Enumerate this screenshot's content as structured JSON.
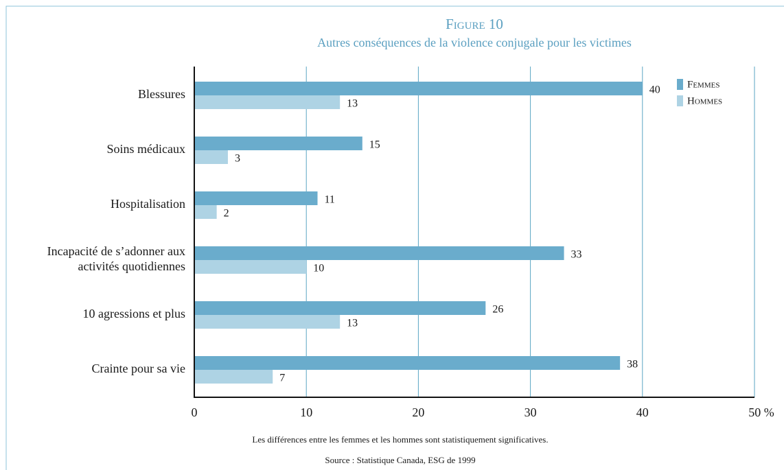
{
  "chart_data": {
    "type": "bar",
    "orientation": "horizontal",
    "title": "Figure 10",
    "subtitle": "Autres conséquences de la violence conjugale pour les victimes",
    "categories": [
      "Blessures",
      "Soins médicaux",
      "Hospitalisation",
      "Incapacité de s’adonner aux\nactivités quotidiennes",
      "10 agressions et plus",
      "Crainte pour sa vie"
    ],
    "series": [
      {
        "name": "Femmes",
        "color": "#6aaccc",
        "values": [
          40,
          15,
          11,
          33,
          26,
          38
        ]
      },
      {
        "name": "Hommes",
        "color": "#aed3e4",
        "values": [
          13,
          3,
          2,
          10,
          13,
          7
        ]
      }
    ],
    "xlim": [
      0,
      50
    ],
    "xticks": [
      0,
      10,
      20,
      30,
      40,
      {
        "value": 50,
        "label": "50 %"
      }
    ],
    "grid": true,
    "legend": "top-right",
    "notes": [
      "Les différences entre les femmes et les hommes sont statistiquement significatives.",
      "Source : Statistique Canada, ESG de 1999"
    ]
  }
}
